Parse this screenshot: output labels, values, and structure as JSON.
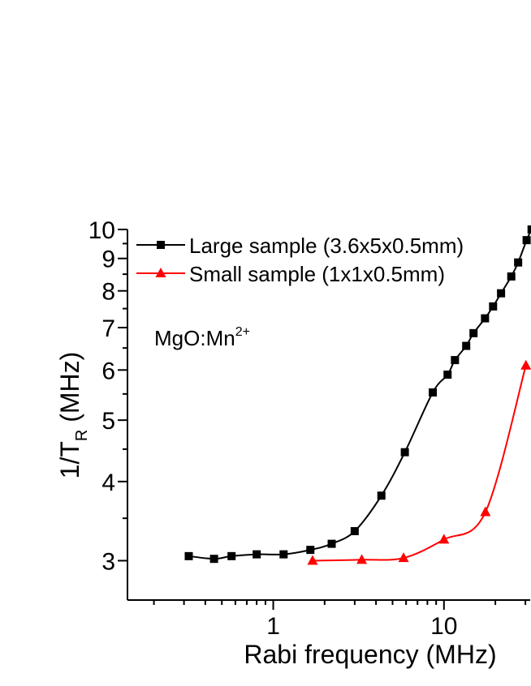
{
  "chart_data": {
    "type": "line",
    "annotation": "MgO:Mn",
    "annotation_sup": "2+",
    "xlabel": "Rabi frequency (MHz)",
    "ylabel_main": "1/T",
    "ylabel_sub": "R",
    "ylabel_unit": " (MHz)",
    "xscale": "log",
    "yscale": "log",
    "xlim": [
      0.14,
      32
    ],
    "ylim": [
      2.6,
      10
    ],
    "x_ticks": [
      {
        "value": 1,
        "label": "1"
      },
      {
        "value": 10,
        "label": "10"
      }
    ],
    "y_ticks": [
      {
        "value": 3,
        "label": "3"
      },
      {
        "value": 4,
        "label": "4"
      },
      {
        "value": 5,
        "label": "5"
      },
      {
        "value": 6,
        "label": "6"
      },
      {
        "value": 7,
        "label": "7"
      },
      {
        "value": 8,
        "label": "8"
      },
      {
        "value": 9,
        "label": "9"
      },
      {
        "value": 10,
        "label": "10"
      }
    ],
    "legend_position": "top-left",
    "series": [
      {
        "name": "Large sample (3.6x5x0.5mm)",
        "color": "#000000",
        "marker": "square",
        "x": [
          0.32,
          0.45,
          0.57,
          0.8,
          1.15,
          1.65,
          2.2,
          3.0,
          4.3,
          5.9,
          8.6,
          10.5,
          11.6,
          13.5,
          14.9,
          17.4,
          19.4,
          21.6,
          24.8,
          27.2,
          30.5,
          32.6
        ],
        "y": [
          3.05,
          3.02,
          3.05,
          3.07,
          3.07,
          3.12,
          3.19,
          3.34,
          3.8,
          4.45,
          5.53,
          5.9,
          6.22,
          6.55,
          6.86,
          7.24,
          7.56,
          7.93,
          8.43,
          8.87,
          9.62,
          10.0
        ]
      },
      {
        "name": "Small sample (1x1x0.5mm)",
        "color": "#ff0000",
        "marker": "triangle",
        "x": [
          1.7,
          3.3,
          5.8,
          10.0,
          17.5,
          30.2
        ],
        "y": [
          3.0,
          3.01,
          3.03,
          3.24,
          3.58,
          6.1
        ]
      }
    ]
  }
}
